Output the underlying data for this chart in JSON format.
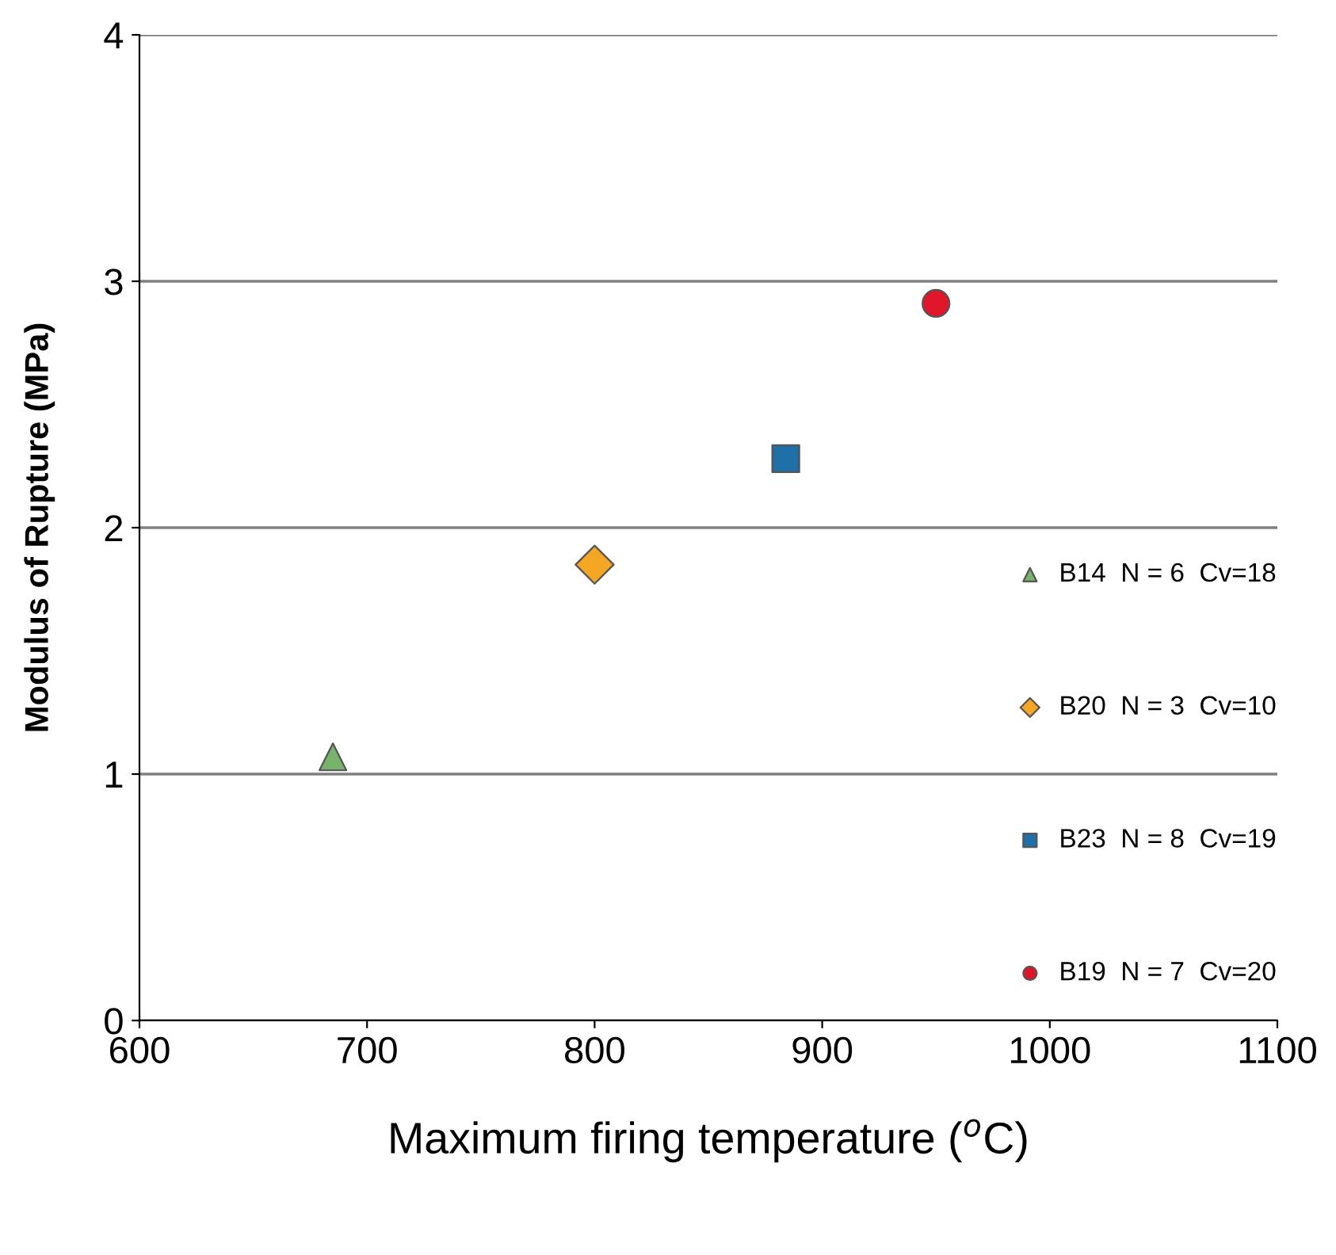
{
  "chart_data": {
    "type": "scatter",
    "xlabel": "Maximum firing temperature ($^{o}$C)",
    "ylabel": "Modulus of Rupture (MPa)",
    "xlim": [
      600,
      1100
    ],
    "xticks": [
      600,
      700,
      800,
      900,
      1000,
      1100
    ],
    "ylim": [
      0,
      4
    ],
    "yticks": [
      0,
      1,
      2,
      3,
      4
    ],
    "grid": "y",
    "legend": "right",
    "series": [
      {
        "name": "B14  N = 6  Cv=18",
        "color": "#77b36b",
        "marker": "triangle",
        "x": [
          685
        ],
        "values": [
          1.07
        ]
      },
      {
        "name": "B20  N = 3  Cv=10",
        "color": "#f5a623",
        "marker": "diamond",
        "x": [
          800
        ],
        "values": [
          1.85
        ]
      },
      {
        "name": "B23  N = 8  Cv=19",
        "color": "#1f6fa8",
        "marker": "square",
        "x": [
          884
        ],
        "values": [
          2.28
        ]
      },
      {
        "name": "B19  N = 7  Cv=20",
        "color": "#e0162b",
        "marker": "circle",
        "x": [
          950
        ],
        "values": [
          2.91
        ]
      }
    ]
  }
}
